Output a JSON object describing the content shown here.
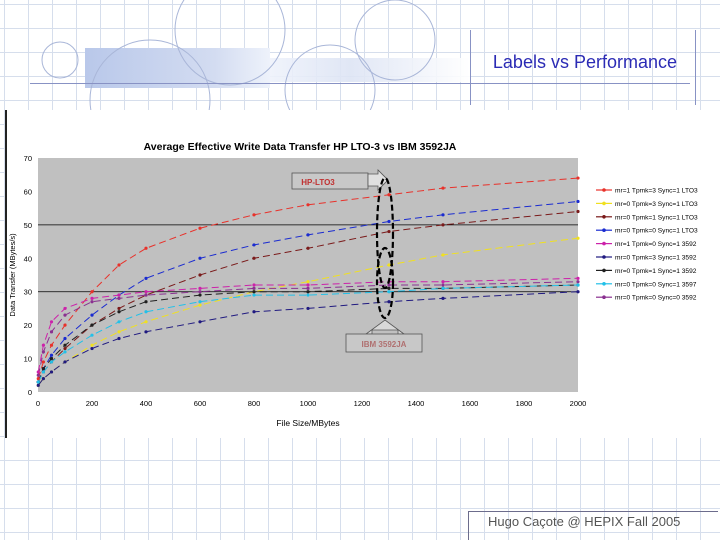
{
  "slide": {
    "title": "Labels vs Performance",
    "footer": "Hugo Caçote @ HEPIX Fall 2005"
  },
  "chart_data": {
    "type": "line",
    "title": "Average Effective Write Data Transfer HP LTO-3 vs IBM 3592JA",
    "xlabel": "File Size/MBytes",
    "ylabel": "Data Transfer (MBytes/s)",
    "xlim": [
      0,
      2000
    ],
    "ylim": [
      0,
      70
    ],
    "xticks": [
      0,
      200,
      400,
      600,
      800,
      1000,
      1200,
      1400,
      1600,
      1800,
      2000
    ],
    "yticks": [
      0,
      10,
      20,
      30,
      40,
      50,
      60,
      70
    ],
    "grid": "horizontal at 30 and 50",
    "legend_position": "right",
    "annotations": [
      {
        "text": "HP-LTO3"
      },
      {
        "text": "IBM 3592JA"
      }
    ],
    "x": [
      1,
      20,
      50,
      100,
      200,
      300,
      400,
      600,
      800,
      1000,
      1300,
      1500,
      2000
    ],
    "series": [
      {
        "name": "mr=1 Tpmk=3 Sync=1 LTO3",
        "color": "#e8312a",
        "values": [
          4,
          9,
          14,
          20,
          30,
          38,
          43,
          49,
          53,
          56,
          59,
          61,
          64
        ]
      },
      {
        "name": "mr=0 Tpmk=3 Sync=1 LTO3",
        "color": "#f0e020",
        "values": [
          2,
          4,
          6,
          9,
          14,
          18,
          21,
          26,
          30,
          33,
          38,
          41,
          46
        ]
      },
      {
        "name": "mr=0 Tpmk=1 Sync=1 LTO3",
        "color": "#7a1a1a",
        "values": [
          3,
          6,
          9,
          13,
          20,
          25,
          29,
          35,
          40,
          43,
          48,
          50,
          54
        ]
      },
      {
        "name": "mr=0 Tpmk=0 Sync=1 LTO3",
        "color": "#1a2bd0",
        "values": [
          3,
          7,
          11,
          16,
          23,
          29,
          34,
          40,
          44,
          47,
          51,
          53,
          57
        ]
      },
      {
        "name": "mr=1 Tpmk=0 Sync=1 3592",
        "color": "#cc22aa",
        "values": [
          6,
          14,
          21,
          25,
          28,
          29,
          30,
          31,
          32,
          32,
          33,
          33,
          34
        ]
      },
      {
        "name": "mr=0 Tpmk=3 Sync=1 3592",
        "color": "#201a80",
        "values": [
          2,
          4,
          6,
          9,
          13,
          16,
          18,
          21,
          24,
          25,
          27,
          28,
          30
        ]
      },
      {
        "name": "mr=0 Tpmk=1 Sync=1 3592",
        "color": "#202020",
        "values": [
          3,
          7,
          10,
          14,
          20,
          24,
          27,
          29,
          30,
          30,
          31,
          31,
          32
        ]
      },
      {
        "name": "mr=0 Tpmk=0 Sync=1 3597",
        "color": "#22c0e8",
        "values": [
          3,
          6,
          9,
          12,
          17,
          21,
          24,
          27,
          29,
          29,
          30,
          31,
          32
        ]
      },
      {
        "name": "mr=0 Tpmk=0 Sync=0 3592",
        "color": "#8a3090",
        "values": [
          5,
          12,
          18,
          23,
          27,
          28,
          29,
          30,
          31,
          31,
          32,
          32,
          33
        ]
      }
    ]
  }
}
